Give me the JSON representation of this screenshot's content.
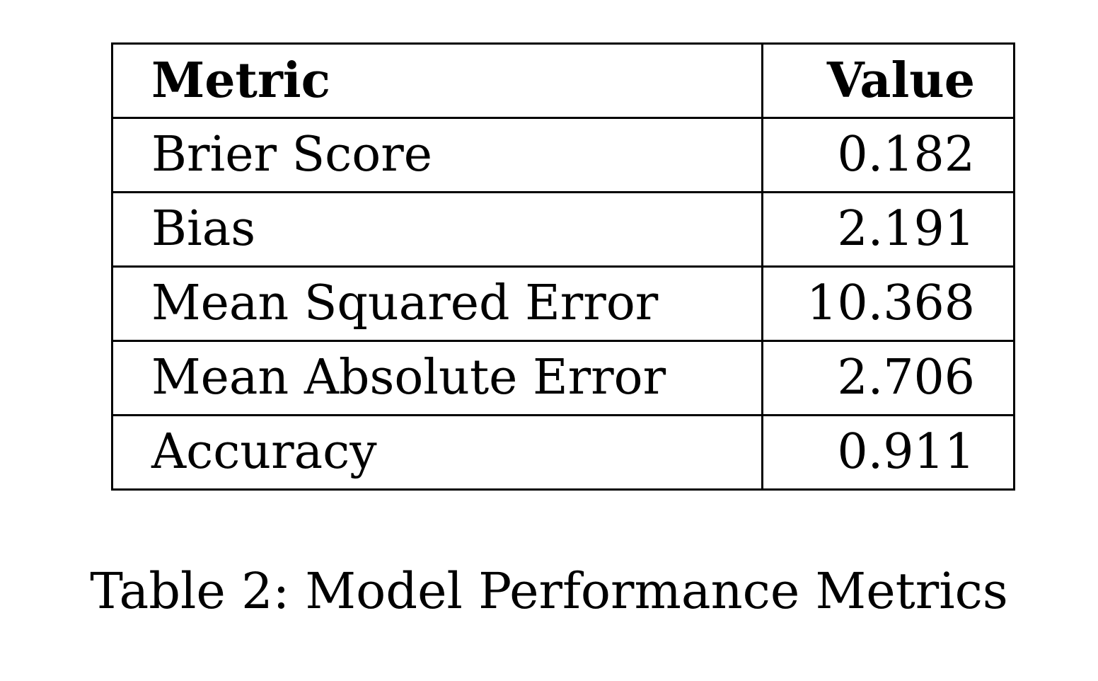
{
  "table": {
    "headers": {
      "metric": "Metric",
      "value": "Value"
    },
    "rows": [
      {
        "metric": "Brier Score",
        "value": "0.182"
      },
      {
        "metric": "Bias",
        "value": "2.191"
      },
      {
        "metric": "Mean Squared Error",
        "value": "10.368"
      },
      {
        "metric": "Mean Absolute Error",
        "value": "2.706"
      },
      {
        "metric": "Accuracy",
        "value": "0.911"
      }
    ]
  },
  "caption": "Table 2: Model Performance Metrics"
}
